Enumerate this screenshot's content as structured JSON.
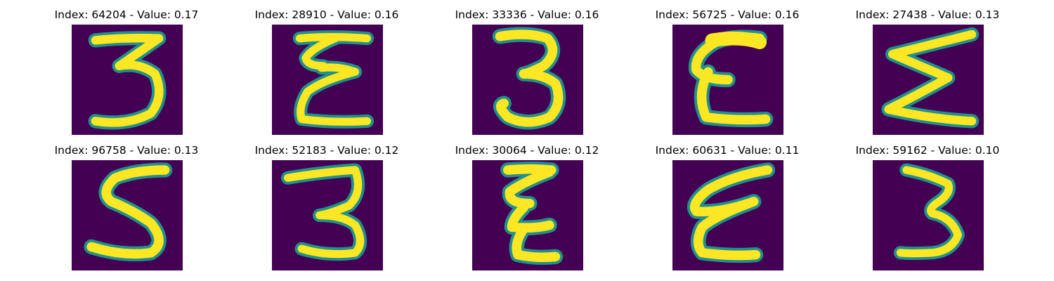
{
  "grid": {
    "rows": 2,
    "columns": 5
  },
  "colormap": {
    "name": "viridis",
    "background": "#440154",
    "edge_dark": "#31688e",
    "edge_mid": "#21918c",
    "edge_light": "#5ec962",
    "stroke": "#fde725"
  },
  "panels": [
    {
      "title": "Index: 64204 - Value: 0.17",
      "digit": "3"
    },
    {
      "title": "Index: 28910 - Value: 0.16",
      "digit": "ε"
    },
    {
      "title": "Index: 33336 - Value: 0.16",
      "digit": "3"
    },
    {
      "title": "Index: 56725 - Value: 0.16",
      "digit": "ε"
    },
    {
      "title": "Index: 27438 - Value: 0.13",
      "digit": "Σ"
    },
    {
      "title": "Index: 96758 - Value: 0.13",
      "digit": "5"
    },
    {
      "title": "Index: 52183 - Value: 0.12",
      "digit": "3"
    },
    {
      "title": "Index: 30064 - Value: 0.12",
      "digit": "ε"
    },
    {
      "title": "Index: 60631 - Value: 0.11",
      "digit": "ε"
    },
    {
      "title": "Index: 59162 - Value: 0.10",
      "digit": "3"
    }
  ]
}
